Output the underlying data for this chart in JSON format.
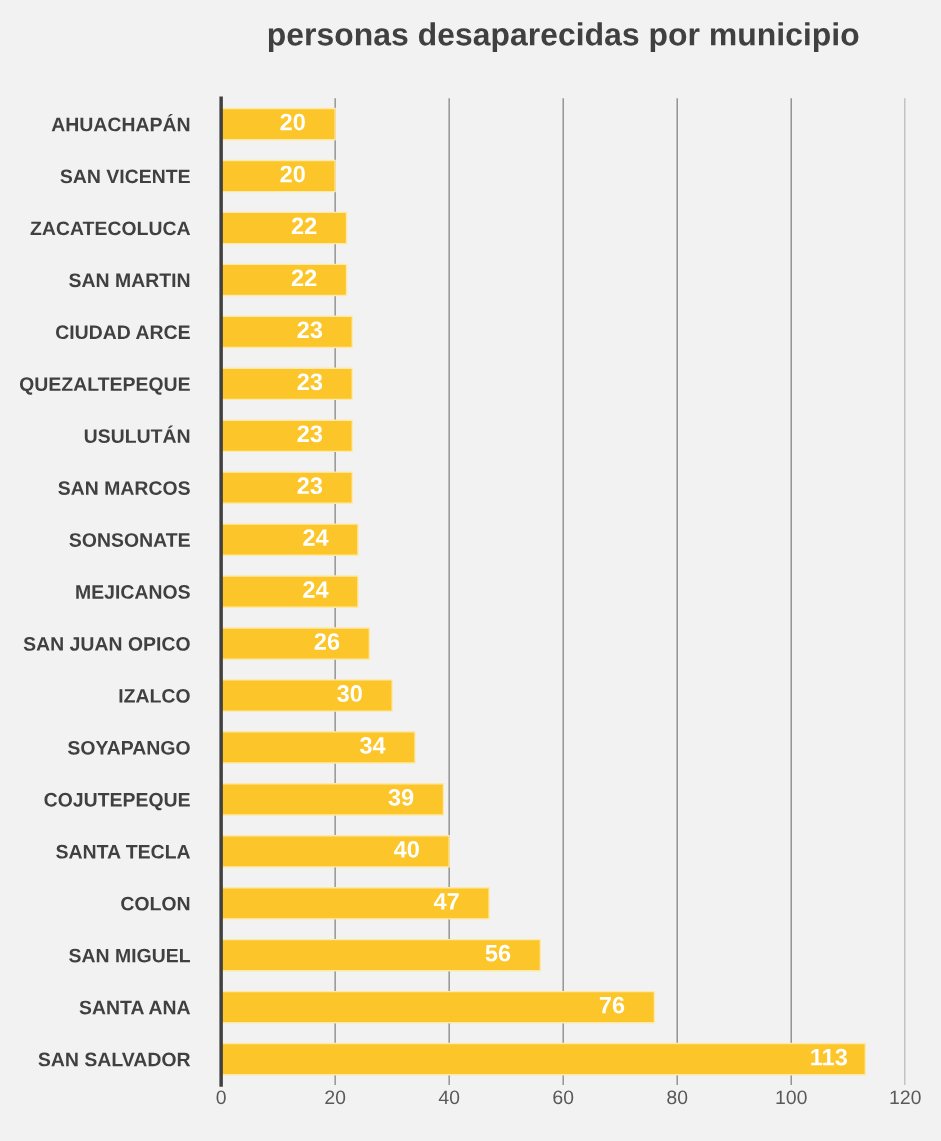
{
  "chart_data": {
    "type": "bar",
    "orientation": "horizontal",
    "title": "personas desaparecidas por municipio",
    "categories": [
      "AHUACHAPÁN",
      "SAN VICENTE",
      "ZACATECOLUCA",
      "SAN MARTIN",
      "CIUDAD ARCE",
      "QUEZALTEPEQUE",
      "USULUTÁN",
      "SAN MARCOS",
      "SONSONATE",
      "MEJICANOS",
      "SAN JUAN OPICO",
      "IZALCO",
      "SOYAPANGO",
      "COJUTEPEQUE",
      "SANTA TECLA",
      "COLON",
      "SAN MIGUEL",
      "SANTA ANA",
      "SAN SALVADOR"
    ],
    "values": [
      20,
      20,
      22,
      22,
      23,
      23,
      23,
      23,
      24,
      24,
      26,
      30,
      34,
      39,
      40,
      47,
      56,
      76,
      113
    ],
    "color": "#fcc62a",
    "xlim": [
      0,
      120
    ],
    "xticks": [
      0,
      20,
      40,
      60,
      80,
      100,
      120
    ],
    "grid": "x",
    "data_labels": true
  }
}
